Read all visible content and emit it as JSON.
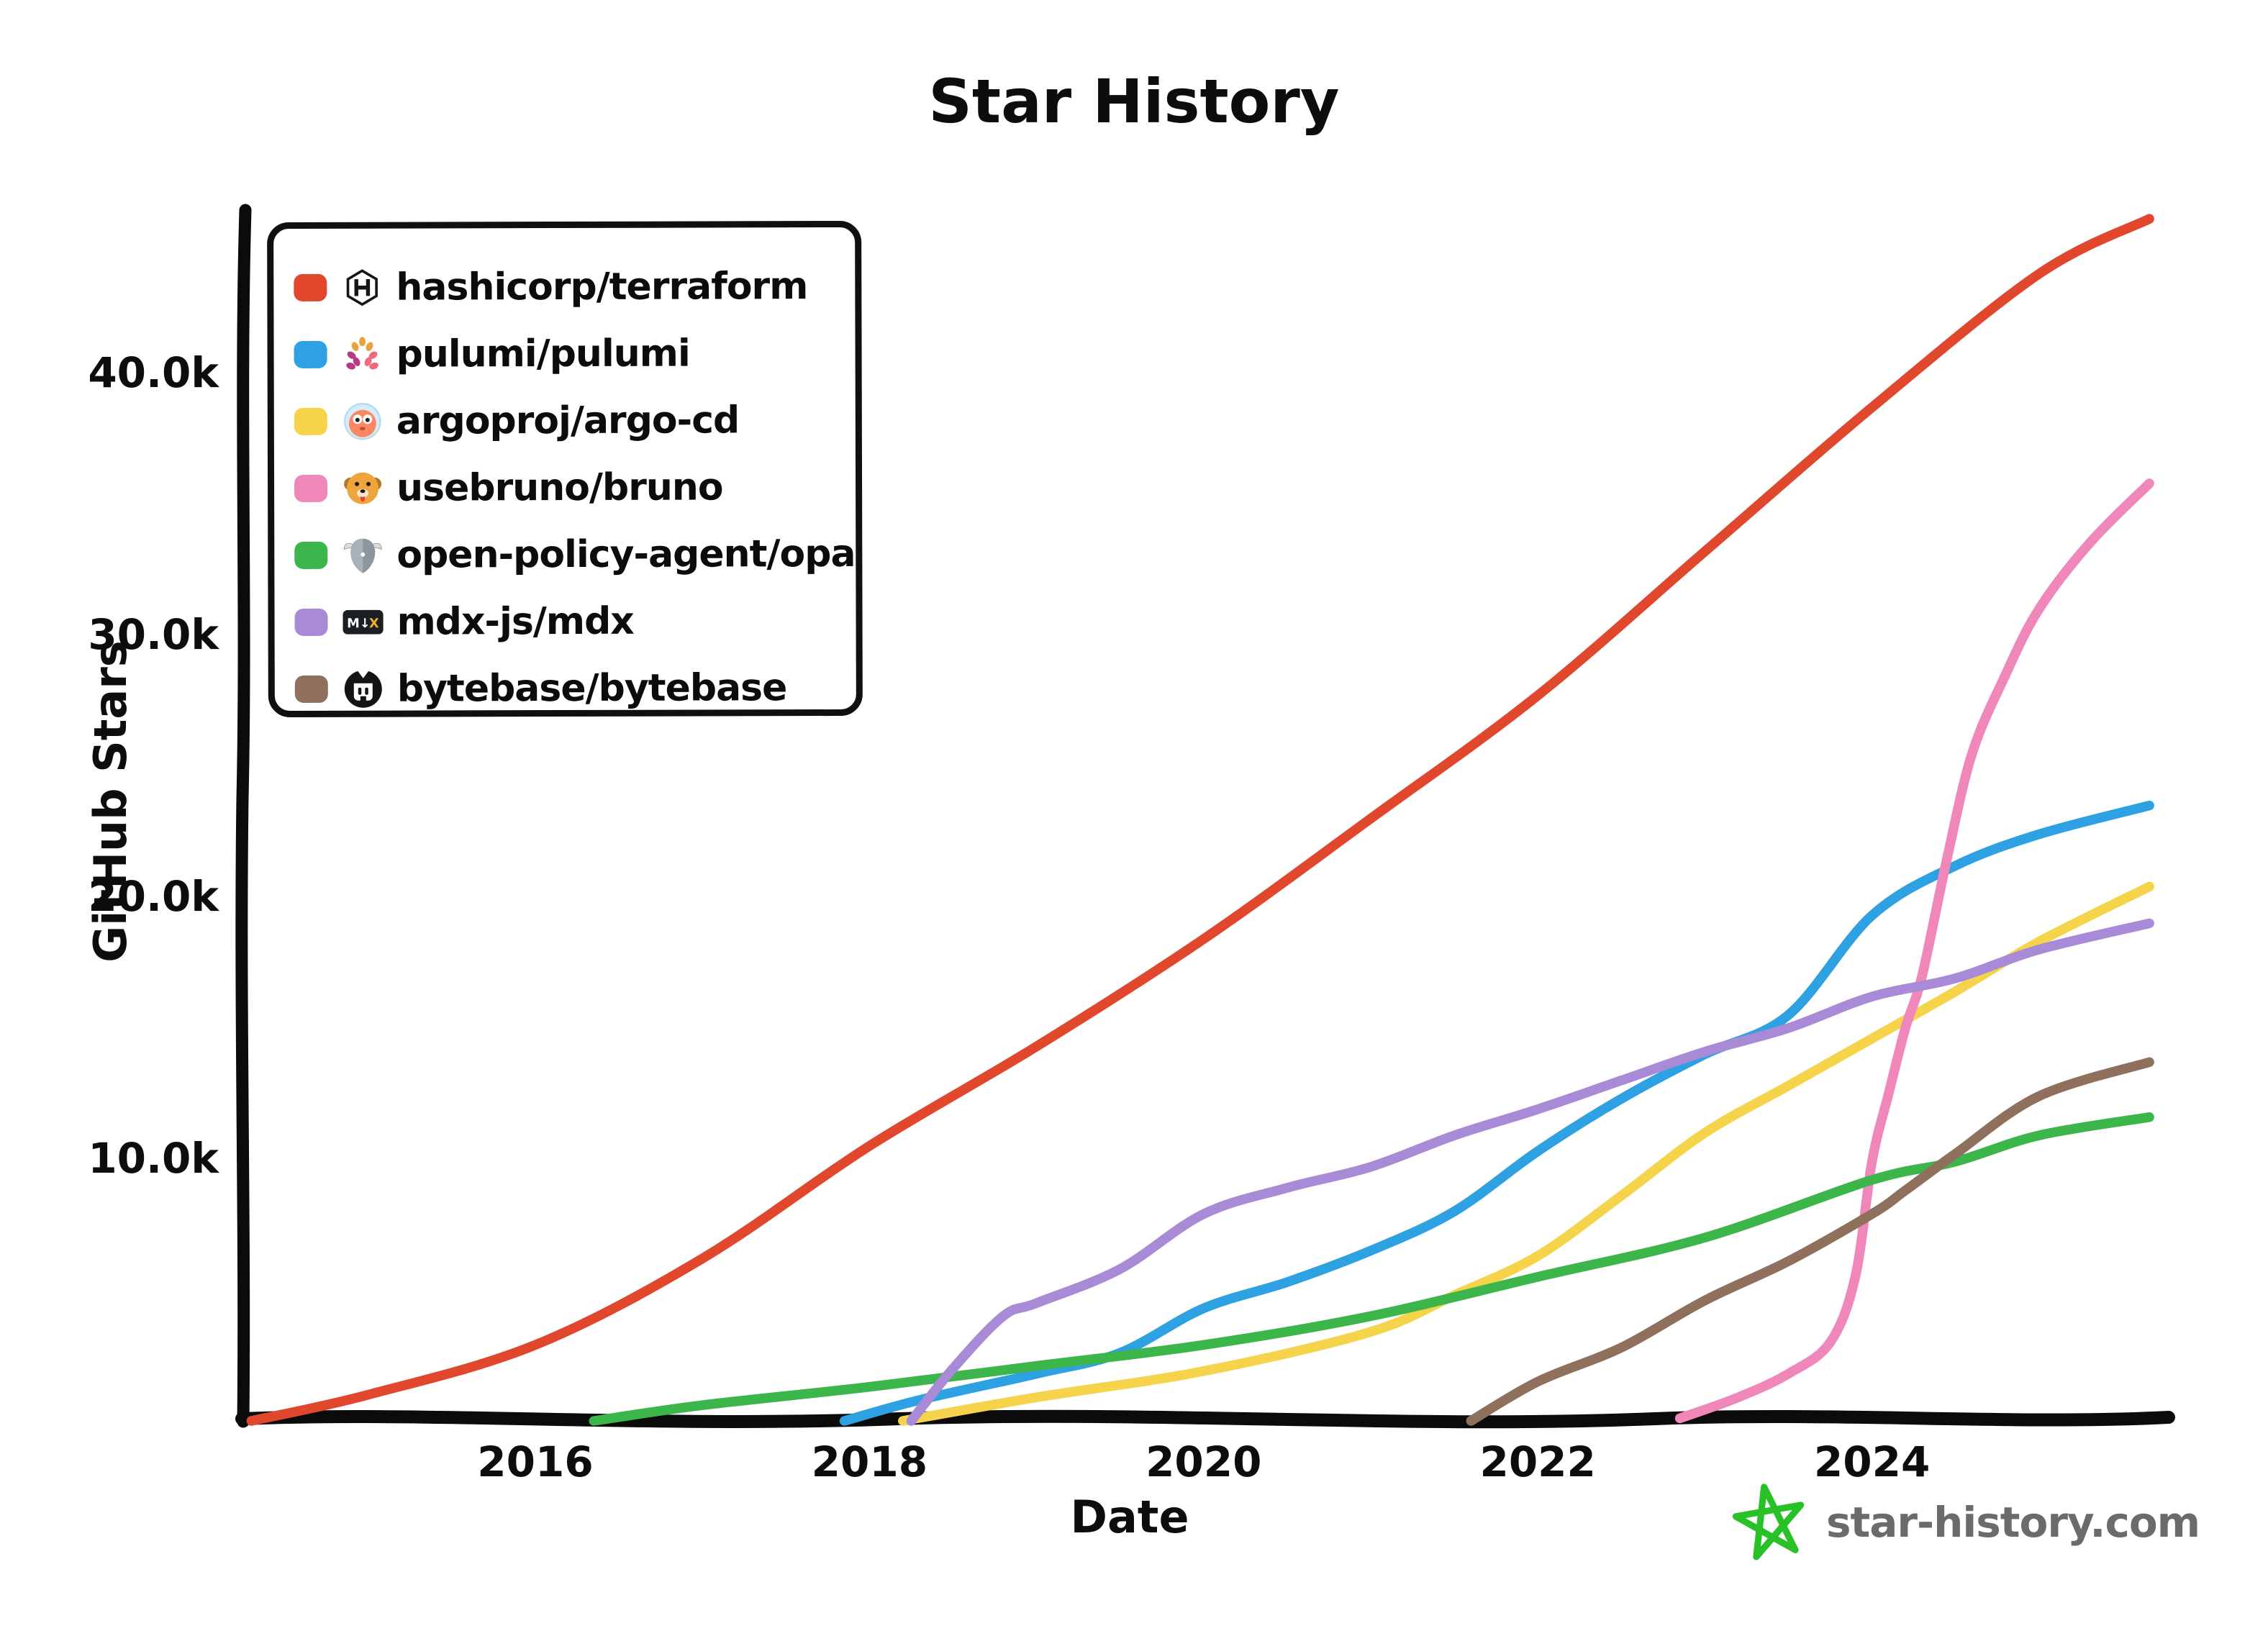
{
  "title": "Star History",
  "axes": {
    "y_label": "GitHub Stars",
    "x_label": "Date",
    "y_ticks": [
      {
        "label": "40.0k",
        "value": 40000
      },
      {
        "label": "30.0k",
        "value": 30000
      },
      {
        "label": "20.0k",
        "value": 20000
      },
      {
        "label": "10.0k",
        "value": 10000
      }
    ],
    "x_ticks": [
      {
        "label": "2016",
        "year": 2016
      },
      {
        "label": "2018",
        "year": 2018
      },
      {
        "label": "2020",
        "year": 2020
      },
      {
        "label": "2022",
        "year": 2022
      },
      {
        "label": "2024",
        "year": 2024
      }
    ]
  },
  "legend": {
    "items": [
      {
        "repo": "hashicorp/terraform",
        "icon": "terraform-icon",
        "color": "#e0472d"
      },
      {
        "repo": "pulumi/pulumi",
        "icon": "pulumi-icon",
        "color": "#2ea1e2"
      },
      {
        "repo": "argoproj/argo-cd",
        "icon": "argo-cd-icon",
        "color": "#f5d44b"
      },
      {
        "repo": "usebruno/bruno",
        "icon": "bruno-icon",
        "color": "#f087ba"
      },
      {
        "repo": "open-policy-agent/opa",
        "icon": "opa-icon",
        "color": "#3cb54b"
      },
      {
        "repo": "mdx-js/mdx",
        "icon": "mdx-icon",
        "color": "#a88ad6"
      },
      {
        "repo": "bytebase/bytebase",
        "icon": "bytebase-icon",
        "color": "#8f705d"
      }
    ]
  },
  "footer": {
    "site": "star-history.com",
    "star_color": "#28c128",
    "text_color": "#6b6b6b"
  },
  "chart_data": {
    "type": "line",
    "title": "Star History",
    "xlabel": "Date",
    "ylabel": "GitHub Stars",
    "x_unit": "year",
    "xlim": [
      2014.2,
      2025.7
    ],
    "ylim": [
      0,
      46000
    ],
    "grid": false,
    "background": "#ffffff",
    "legend_position": "top-left",
    "axis_color": "#0d0d0d",
    "series": [
      {
        "name": "hashicorp/terraform",
        "color": "#e0472d",
        "points": [
          [
            2014.3,
            0
          ],
          [
            2015,
            1000
          ],
          [
            2016,
            2900
          ],
          [
            2017,
            6200
          ],
          [
            2018,
            10500
          ],
          [
            2019,
            14300
          ],
          [
            2020,
            18400
          ],
          [
            2021,
            23000
          ],
          [
            2022,
            27700
          ],
          [
            2023,
            33200
          ],
          [
            2024,
            38700
          ],
          [
            2025,
            43800
          ],
          [
            2025.66,
            45900
          ]
        ]
      },
      {
        "name": "pulumi/pulumi",
        "color": "#2ea1e2",
        "points": [
          [
            2017.85,
            0
          ],
          [
            2018.3,
            800
          ],
          [
            2019,
            1800
          ],
          [
            2019.5,
            2600
          ],
          [
            2020,
            4300
          ],
          [
            2020.5,
            5300
          ],
          [
            2021,
            6500
          ],
          [
            2021.5,
            8000
          ],
          [
            2022,
            10300
          ],
          [
            2022.5,
            12300
          ],
          [
            2023,
            14000
          ],
          [
            2023.5,
            15500
          ],
          [
            2024,
            19300
          ],
          [
            2024.5,
            21200
          ],
          [
            2025,
            22400
          ],
          [
            2025.66,
            23500
          ]
        ]
      },
      {
        "name": "argoproj/argo-cd",
        "color": "#f5d44b",
        "points": [
          [
            2018.2,
            0
          ],
          [
            2019,
            900
          ],
          [
            2020,
            1900
          ],
          [
            2021,
            3400
          ],
          [
            2021.5,
            4800
          ],
          [
            2022,
            6300
          ],
          [
            2022.5,
            8600
          ],
          [
            2023,
            11000
          ],
          [
            2023.5,
            12800
          ],
          [
            2024,
            14600
          ],
          [
            2024.5,
            16400
          ],
          [
            2025,
            18300
          ],
          [
            2025.66,
            20400
          ]
        ]
      },
      {
        "name": "usebruno/bruno",
        "color": "#f087ba",
        "points": [
          [
            2022.85,
            100
          ],
          [
            2023.2,
            900
          ],
          [
            2023.5,
            1800
          ],
          [
            2023.75,
            3000
          ],
          [
            2023.9,
            5500
          ],
          [
            2024.0,
            9900
          ],
          [
            2024.1,
            12500
          ],
          [
            2024.2,
            15000
          ],
          [
            2024.3,
            17000
          ],
          [
            2024.45,
            21500
          ],
          [
            2024.6,
            25500
          ],
          [
            2024.8,
            28500
          ],
          [
            2025,
            31000
          ],
          [
            2025.3,
            33500
          ],
          [
            2025.66,
            35800
          ]
        ]
      },
      {
        "name": "open-policy-agent/opa",
        "color": "#3cb54b",
        "points": [
          [
            2016.35,
            0
          ],
          [
            2017,
            600
          ],
          [
            2018,
            1300
          ],
          [
            2019,
            2100
          ],
          [
            2020,
            2900
          ],
          [
            2021,
            4000
          ],
          [
            2022,
            5500
          ],
          [
            2023,
            7000
          ],
          [
            2024,
            9200
          ],
          [
            2024.5,
            9900
          ],
          [
            2025,
            10900
          ],
          [
            2025.66,
            11600
          ]
        ]
      },
      {
        "name": "mdx-js/mdx",
        "color": "#a88ad6",
        "points": [
          [
            2018.25,
            0
          ],
          [
            2018.5,
            2000
          ],
          [
            2018.8,
            4000
          ],
          [
            2019,
            4500
          ],
          [
            2019.5,
            5800
          ],
          [
            2020,
            7900
          ],
          [
            2020.5,
            8900
          ],
          [
            2021,
            9700
          ],
          [
            2021.5,
            10900
          ],
          [
            2022,
            11900
          ],
          [
            2022.5,
            13000
          ],
          [
            2023,
            14100
          ],
          [
            2023.5,
            15000
          ],
          [
            2024,
            16200
          ],
          [
            2024.5,
            16900
          ],
          [
            2025,
            18000
          ],
          [
            2025.66,
            19000
          ]
        ]
      },
      {
        "name": "bytebase/bytebase",
        "color": "#8f705d",
        "points": [
          [
            2021.6,
            0
          ],
          [
            2022,
            1500
          ],
          [
            2022.5,
            2800
          ],
          [
            2023,
            4600
          ],
          [
            2023.5,
            6100
          ],
          [
            2024,
            7900
          ],
          [
            2024.2,
            8800
          ],
          [
            2024.5,
            10200
          ],
          [
            2025,
            12400
          ],
          [
            2025.66,
            13700
          ]
        ]
      }
    ]
  }
}
